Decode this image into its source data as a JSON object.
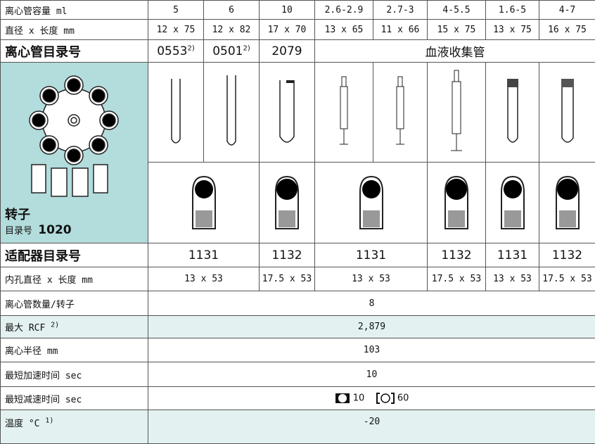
{
  "tube_volume": {
    "label": "离心管容量 ml",
    "values": [
      "5",
      "6",
      "10",
      "2.6-2.9",
      "2.7-3",
      "4-5.5",
      "1.6-5",
      "4-7"
    ]
  },
  "tube_size": {
    "label": "直径 x 长度 mm",
    "values": [
      "12 x 75",
      "12 x 82",
      "17 x 70",
      "13 x 65",
      "11 x 66",
      "15 x 75",
      "13 x 75",
      "16 x 75"
    ]
  },
  "tube_catalog": {
    "label": "离心管目录号",
    "values": [
      {
        "text": "0553",
        "note": "2)"
      },
      {
        "text": "0501",
        "note": "2)"
      },
      {
        "text": "2079"
      }
    ],
    "blood_tubes": "血液收集管"
  },
  "rotor": {
    "label": "转子",
    "catalog_label": "目录号",
    "catalog": "1020"
  },
  "adapter_catalog": {
    "label": "适配器目录号",
    "values": [
      "1131",
      "1132",
      "1131",
      "1132",
      "1131",
      "1132"
    ]
  },
  "adapter_bore": {
    "label": "内孔直径 x 长度 mm",
    "values": [
      "13 x 53",
      "17.5 x 53",
      "13 x 53",
      "17.5 x 53",
      "13 x 53",
      "17.5 x 53"
    ]
  },
  "tubes_per_rotor": {
    "label": "离心管数量/转子",
    "value": "8"
  },
  "max_rcf": {
    "label": "最大 RCF",
    "note": "2)",
    "value": "2,879"
  },
  "radius": {
    "label": "离心半径 mm",
    "value": "103"
  },
  "accel": {
    "label": "最短加速时间 sec",
    "value": "10"
  },
  "decel": {
    "label": "最短减速时间 sec",
    "values": [
      "10",
      "60"
    ]
  },
  "temperature": {
    "label": "温度 °C",
    "note": "1)",
    "value": "-20"
  }
}
